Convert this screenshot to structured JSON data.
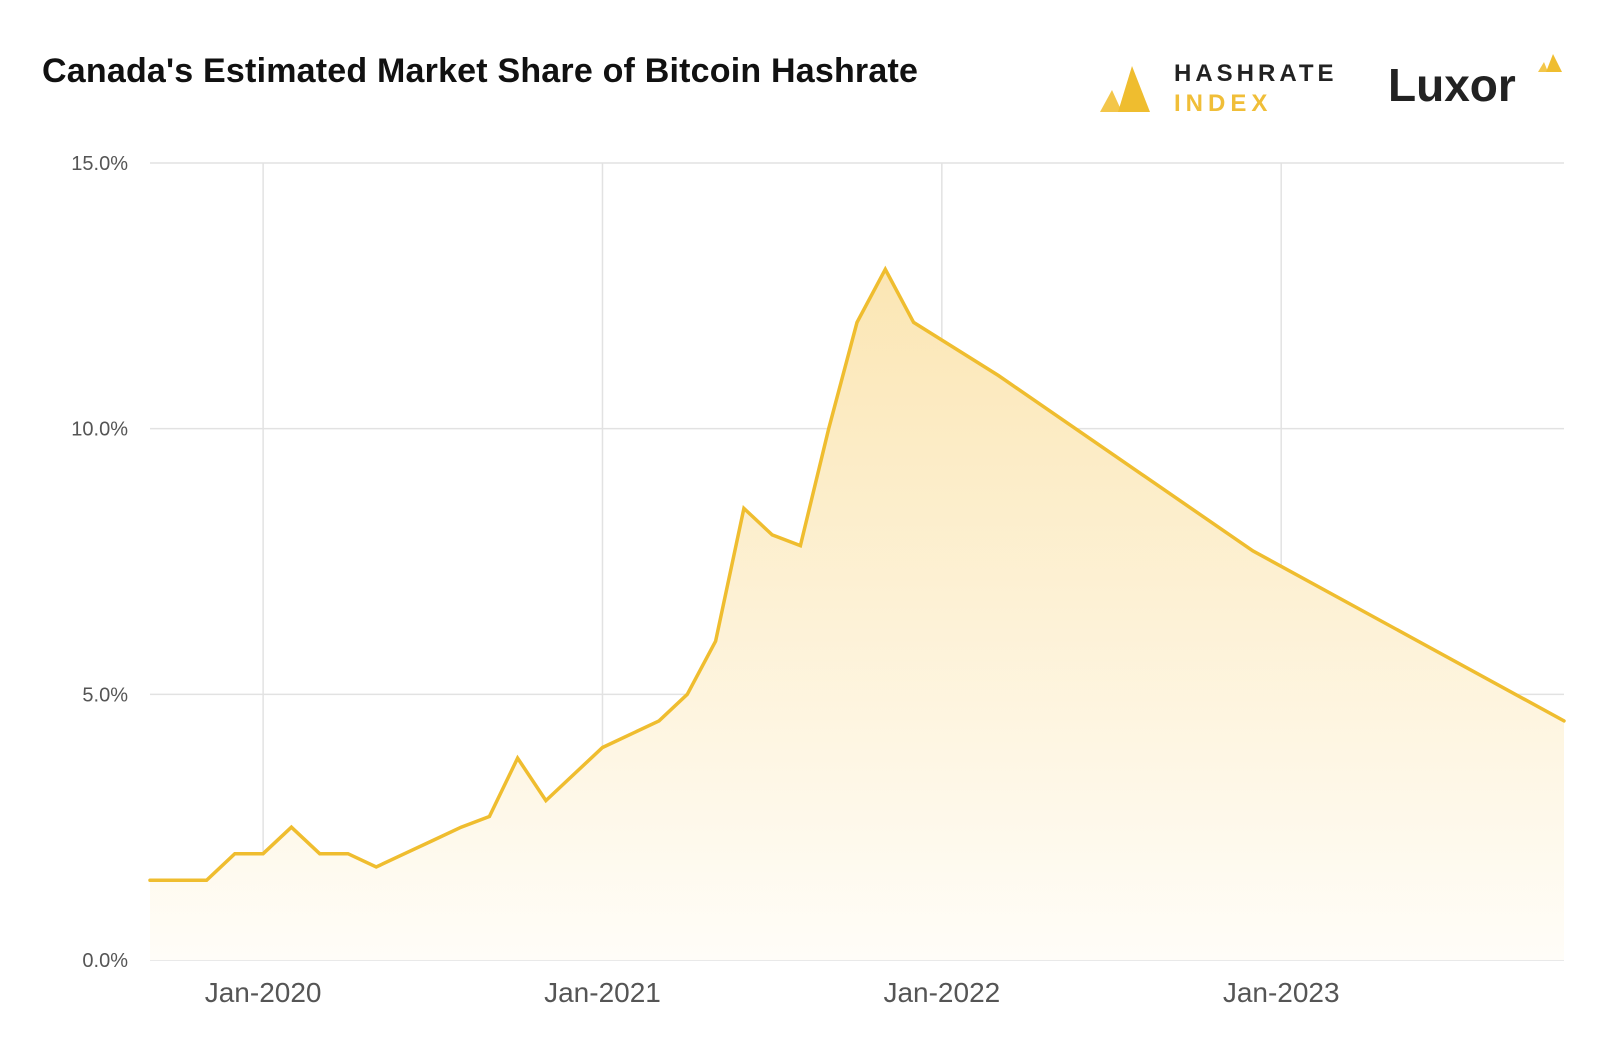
{
  "header": {
    "title": "Canada's Estimated Market Share of Bitcoin Hashrate"
  },
  "logos": {
    "hashrate_index": {
      "line1": "HASHRATE",
      "line2": "INDEX",
      "icon": "hashrate-index-logo-icon"
    },
    "luxor": {
      "text": "Luxor",
      "icon": "luxor-logo-icon"
    }
  },
  "colors": {
    "line": "#efbd2f",
    "fill_top": "#fbe6b4",
    "fill_bottom": "#fffdf8",
    "grid": "#e2e2e2",
    "accent_gold": "#f0be38"
  },
  "chart_data": {
    "type": "area",
    "title": "Canada's Estimated Market Share of Bitcoin Hashrate",
    "xlabel": "",
    "ylabel": "",
    "x_ticks": [
      "Jan-2020",
      "Jan-2021",
      "Jan-2022",
      "Jan-2023"
    ],
    "y_ticks": [
      "0.0%",
      "5.0%",
      "10.0%",
      "15.0%"
    ],
    "ylim": [
      0,
      15
    ],
    "xlim": [
      "2019-09",
      "2023-11"
    ],
    "grid": true,
    "legend": "none",
    "series": [
      {
        "x": [
          "2019-09",
          "2019-10",
          "2019-11",
          "2019-12",
          "2020-01",
          "2020-02",
          "2020-03",
          "2020-04",
          "2020-05",
          "2020-06",
          "2020-07",
          "2020-08",
          "2020-09",
          "2020-10",
          "2020-11",
          "2020-12",
          "2021-01",
          "2021-02",
          "2021-03",
          "2021-04",
          "2021-05",
          "2021-06",
          "2021-07",
          "2021-08",
          "2021-09",
          "2021-10",
          "2021-11",
          "2021-12",
          "2022-03",
          "2022-12",
          "2023-11"
        ],
        "y": [
          1.5,
          1.5,
          1.5,
          2.0,
          2.0,
          2.5,
          2.0,
          2.0,
          1.75,
          2.0,
          2.25,
          2.5,
          2.7,
          3.8,
          3.0,
          3.5,
          4.0,
          4.25,
          4.5,
          5.0,
          6.0,
          8.5,
          8.0,
          7.8,
          10.0,
          12.0,
          13.0,
          12.0,
          11.0,
          7.7,
          4.5
        ]
      }
    ]
  }
}
